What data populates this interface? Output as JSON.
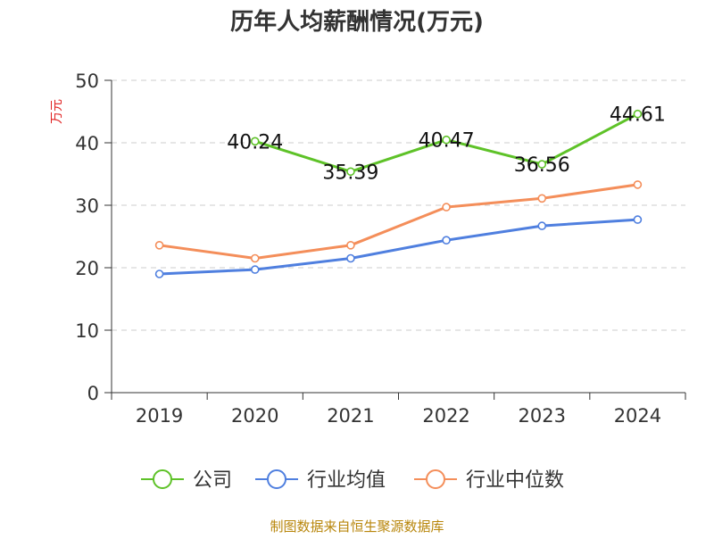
{
  "chart_data": {
    "type": "line",
    "title": "历年人均薪酬情况(万元)",
    "ylabel": "万元",
    "xlabel": "",
    "ylim": [
      0,
      50
    ],
    "yticks": [
      0,
      10,
      20,
      30,
      40,
      50
    ],
    "grid": true,
    "categories": [
      "2019",
      "2020",
      "2021",
      "2022",
      "2023",
      "2024"
    ],
    "series": [
      {
        "name": "公司",
        "color": "#5ec228",
        "values": [
          null,
          40.24,
          35.39,
          40.47,
          36.56,
          44.61
        ],
        "labels": [
          "",
          "40.24",
          "35.39",
          "40.47",
          "36.56",
          "44.61"
        ]
      },
      {
        "name": "行业均值",
        "color": "#4f7fdf",
        "values": [
          19.0,
          19.7,
          21.5,
          24.4,
          26.7,
          27.7
        ]
      },
      {
        "name": "行业中位数",
        "color": "#f48e5a",
        "values": [
          23.6,
          21.5,
          23.6,
          29.7,
          31.1,
          33.3
        ]
      }
    ],
    "legend_position": "bottom",
    "source": "制图数据来自恒生聚源数据库"
  }
}
